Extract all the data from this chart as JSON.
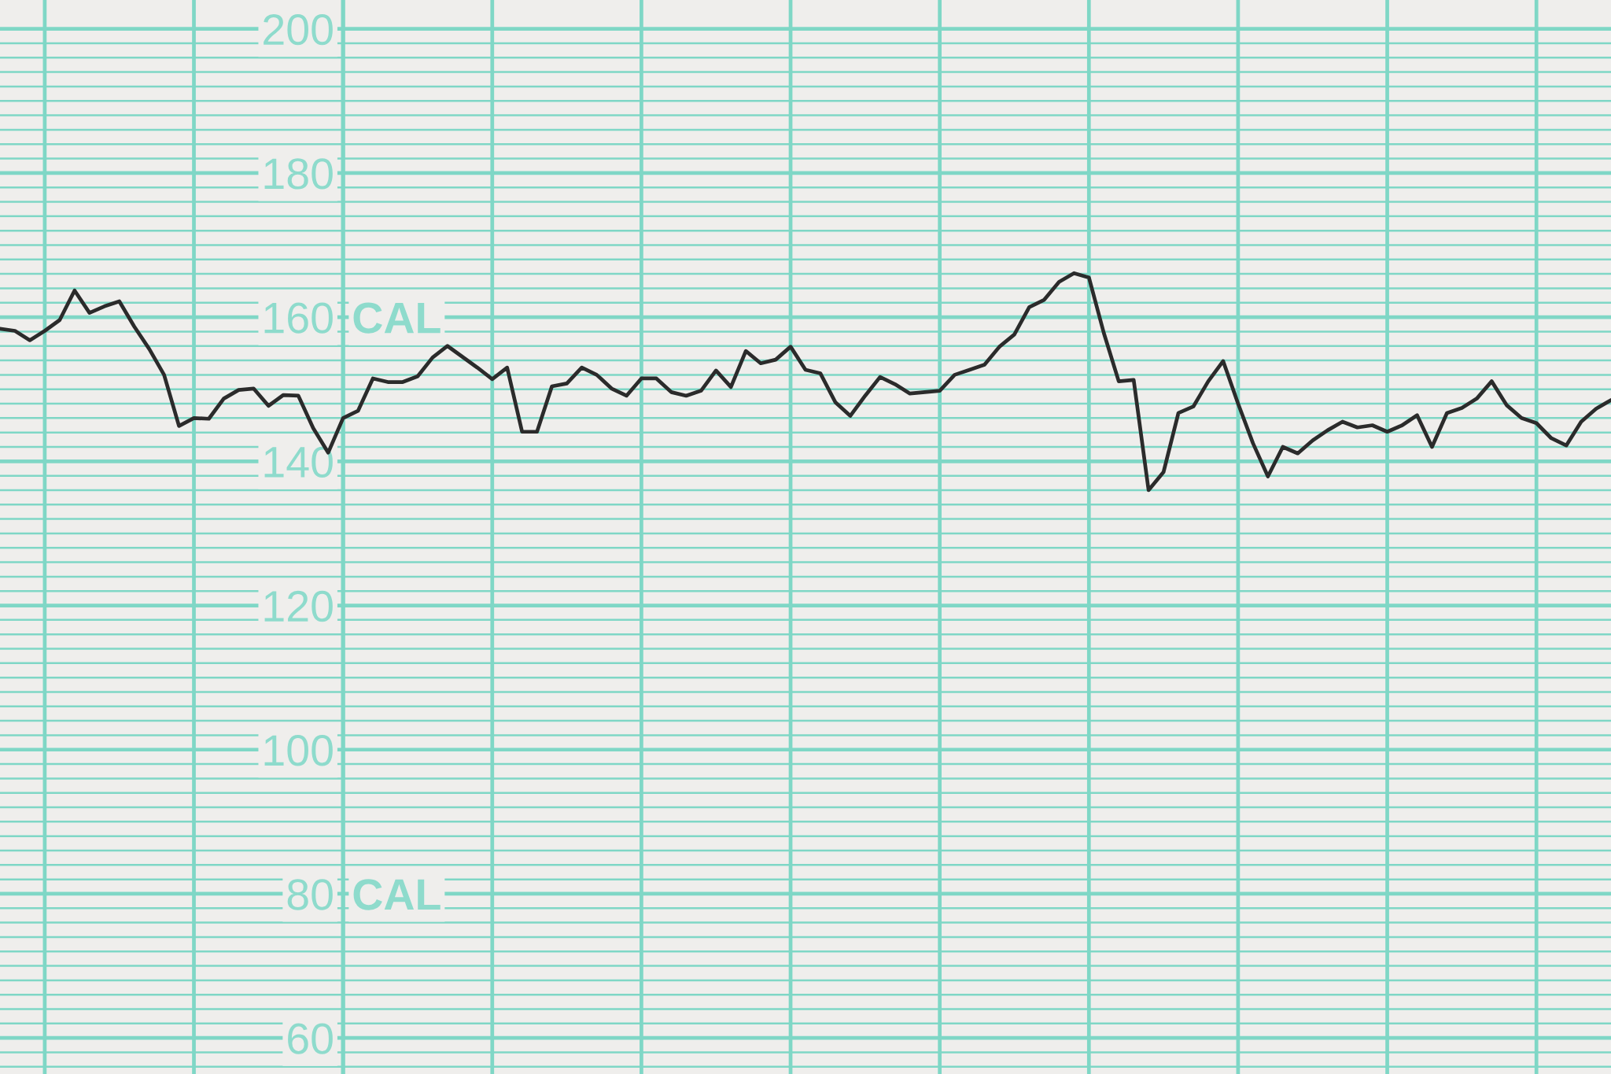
{
  "chart_data": {
    "type": "line",
    "categories": [
      null,
      null,
      null,
      null,
      null,
      null,
      null,
      null,
      null,
      null,
      null,
      null,
      null,
      null,
      null,
      null,
      null,
      null,
      null,
      null,
      null,
      null,
      null,
      null,
      null,
      null,
      null,
      null,
      null,
      null,
      null,
      null,
      null,
      null,
      null,
      null,
      null,
      null,
      null,
      null,
      null,
      null,
      null,
      null,
      null,
      null,
      null,
      null,
      null,
      null,
      null,
      null,
      null,
      null,
      null,
      null,
      null,
      null,
      null,
      null,
      null,
      null,
      null,
      null,
      null,
      null,
      null,
      null,
      null,
      null,
      null,
      null,
      null,
      null,
      null,
      null,
      null,
      null,
      null,
      null,
      null,
      null,
      null,
      null,
      null,
      null,
      null,
      null,
      null,
      null,
      null,
      null,
      null,
      null,
      null,
      null,
      null,
      null,
      null,
      null,
      null,
      null,
      null,
      null,
      null,
      null,
      null,
      null,
      null
    ],
    "series": [
      {
        "color": "#2b2b2b",
        "values": [
          158.4,
          158.1,
          156.8,
          158.1,
          159.6,
          163.7,
          160.6,
          161.5,
          162.2,
          158.7,
          155.6,
          152.0,
          144.9,
          146.0,
          145.9,
          148.7,
          149.9,
          150.1,
          147.7,
          149.2,
          149.1,
          144.6,
          141.2,
          146.0,
          147.0,
          151.5,
          151.0,
          151.0,
          151.8,
          154.4,
          156.0,
          154.5,
          153.0,
          151.4,
          153.0,
          144.1,
          144.1,
          150.4,
          150.8,
          153.0,
          152.0,
          150.1,
          149.1,
          151.5,
          151.5,
          149.6,
          149.1,
          149.8,
          152.6,
          150.3,
          155.3,
          153.6,
          154.1,
          155.9,
          152.7,
          152.2,
          148.2,
          146.3,
          149.1,
          151.7,
          150.7,
          149.4,
          149.6,
          149.8,
          152.0,
          152.7,
          153.4,
          155.9,
          157.6,
          161.4,
          162.4,
          164.9,
          166.1,
          165.5,
          157.8,
          151.1,
          151.3,
          136.0,
          138.5,
          146.7,
          147.6,
          151.1,
          153.9,
          148.0,
          142.5,
          137.9,
          142.0,
          141.1,
          142.9,
          144.3,
          145.5,
          144.7,
          145.0,
          144.1,
          145.0,
          146.4,
          142.0,
          146.7,
          147.4,
          148.7,
          151.1,
          147.8,
          146.0,
          145.3,
          143.2,
          142.2,
          145.5,
          147.3,
          148.5
        ]
      }
    ],
    "ylim": [
      55,
      204
    ],
    "yticks": [
      {
        "value": 56,
        "label": null
      },
      {
        "value": 58,
        "label": null
      },
      60,
      {
        "value": 62,
        "label": null
      },
      {
        "value": 64,
        "label": null
      },
      {
        "value": 66,
        "label": null
      },
      {
        "value": 68,
        "label": null
      },
      {
        "value": 70,
        "label": null
      },
      {
        "value": 72,
        "label": null
      },
      {
        "value": 74,
        "label": null
      },
      {
        "value": 76,
        "label": null
      },
      {
        "value": 78,
        "label": null
      },
      80,
      {
        "value": 82,
        "label": null
      },
      {
        "value": 84,
        "label": null
      },
      {
        "value": 86,
        "label": null
      },
      {
        "value": 88,
        "label": null
      },
      {
        "value": 90,
        "label": null
      },
      {
        "value": 92,
        "label": null
      },
      {
        "value": 94,
        "label": null
      },
      {
        "value": 96,
        "label": null
      },
      {
        "value": 98,
        "label": null
      },
      100,
      {
        "value": 102,
        "label": null
      },
      {
        "value": 104,
        "label": null
      },
      {
        "value": 106,
        "label": null
      },
      {
        "value": 108,
        "label": null
      },
      {
        "value": 110,
        "label": null
      },
      {
        "value": 112,
        "label": null
      },
      {
        "value": 114,
        "label": null
      },
      {
        "value": 116,
        "label": null
      },
      {
        "value": 118,
        "label": null
      },
      120,
      {
        "value": 122,
        "label": null
      },
      {
        "value": 124,
        "label": null
      },
      {
        "value": 126,
        "label": null
      },
      {
        "value": 128,
        "label": null
      },
      {
        "value": 130,
        "label": null
      },
      {
        "value": 132,
        "label": null
      },
      {
        "value": 134,
        "label": null
      },
      {
        "value": 136,
        "label": null
      },
      {
        "value": 138,
        "label": null
      },
      140,
      {
        "value": 142,
        "label": null
      },
      {
        "value": 144,
        "label": null
      },
      {
        "value": 146,
        "label": null
      },
      {
        "value": 148,
        "label": null
      },
      {
        "value": 150,
        "label": null
      },
      {
        "value": 152,
        "label": null
      },
      {
        "value": 154,
        "label": null
      },
      {
        "value": 156,
        "label": null
      },
      {
        "value": 158,
        "label": null
      },
      160,
      {
        "value": 162,
        "label": null
      },
      {
        "value": 164,
        "label": null
      },
      {
        "value": 166,
        "label": null
      },
      {
        "value": 168,
        "label": null
      },
      {
        "value": 170,
        "label": null
      },
      {
        "value": 172,
        "label": null
      },
      {
        "value": 174,
        "label": null
      },
      {
        "value": 176,
        "label": null
      },
      {
        "value": 178,
        "label": null
      },
      180,
      {
        "value": 182,
        "label": null
      },
      {
        "value": 184,
        "label": null
      },
      {
        "value": 186,
        "label": null
      },
      {
        "value": 188,
        "label": null
      },
      {
        "value": 190,
        "label": null
      },
      {
        "value": 192,
        "label": null
      },
      {
        "value": 194,
        "label": null
      },
      {
        "value": 196,
        "label": null
      },
      {
        "value": 198,
        "label": null
      },
      200
    ],
    "grid": true,
    "line_style": "solid",
    "tick_labels": "y",
    "annotations": [
      "CAL",
      "CAL"
    ]
  }
}
